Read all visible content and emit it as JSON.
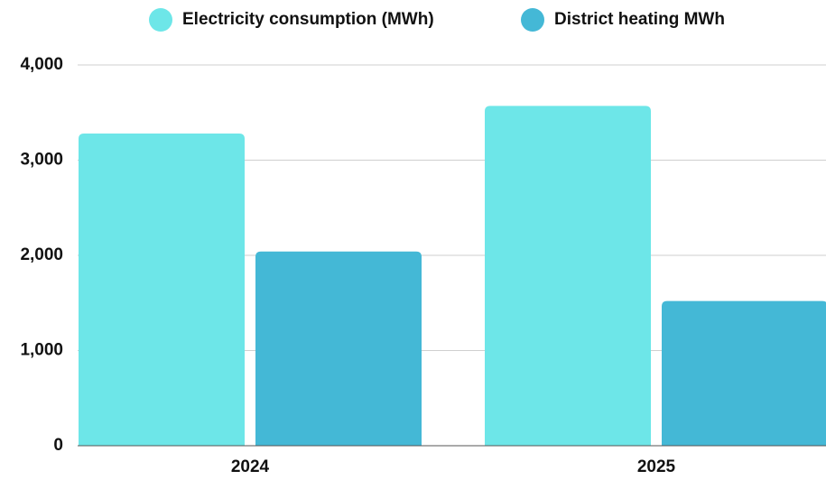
{
  "chart_data": {
    "type": "bar",
    "categories": [
      "2024",
      "2025"
    ],
    "series": [
      {
        "name": "Electricity consumption (MWh)",
        "color": "#6de6e8",
        "values": [
          3280,
          3570
        ]
      },
      {
        "name": "District heating MWh",
        "color": "#44b8d6",
        "values": [
          2040,
          1520
        ]
      }
    ],
    "ylim": [
      0,
      4000
    ],
    "yticks": [
      0,
      {
        "value": 1000,
        "label": "1,000"
      },
      {
        "value": 2000,
        "label": "2,000"
      },
      {
        "value": 3000,
        "label": "3,000"
      },
      {
        "value": 4000,
        "label": "4,000"
      }
    ],
    "grid": true,
    "legend": "top"
  }
}
